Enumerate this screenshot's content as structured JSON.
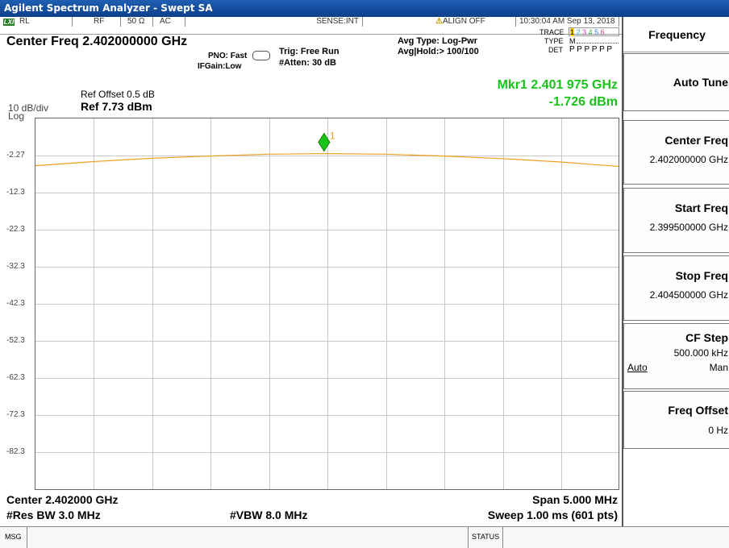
{
  "window": {
    "title": "Agilent Spectrum Analyzer - Swept SA"
  },
  "status": {
    "logo": "LXI",
    "rl": "RL",
    "rf": "RF",
    "impedance": "50 Ω",
    "coupling": "AC",
    "sense": "SENSE:INT",
    "align": "ALIGN OFF",
    "datetime": "10:30:04 AM Sep 13, 2018"
  },
  "header": {
    "center_freq": "Center Freq  2.402000000 GHz",
    "pno": "PNO: Fast",
    "ifgain": "IFGain:Low",
    "trig": "Trig: Free Run",
    "atten": "#Atten: 30 dB",
    "avg_type": "Avg Type: Log-Pwr",
    "avg_hold": "Avg|Hold:> 100/100",
    "trace_label": "TRACE",
    "trace_nums": [
      "1",
      "2",
      "3",
      "4",
      "5",
      "6"
    ],
    "type_label": "TYPE",
    "type_value": "M",
    "det_label": "DET",
    "det_value": "P P P P P P",
    "ref_offset": "Ref Offset 0.5 dB",
    "scale": "10 dB/div",
    "log": "Log",
    "ref_level": "Ref 7.73 dBm",
    "marker_freq": "Mkr1 2.401 975 GHz",
    "marker_amp": "-1.726 dBm",
    "marker_label": "1"
  },
  "graph": {
    "y_labels": [
      "-2.27",
      "-12.3",
      "-22.3",
      "-32.3",
      "-42.3",
      "-52.3",
      "-62.3",
      "-72.3",
      "-82.3"
    ],
    "trace_color": "#f0a020",
    "marker_color": "#19c419"
  },
  "chart_data": {
    "type": "line",
    "x": [
      2.3995,
      2.4,
      2.4005,
      2.401,
      2.4015,
      2.402,
      2.4025,
      2.403,
      2.4035,
      2.404,
      2.4045
    ],
    "series": [
      {
        "values": [
          -5.0,
          -3.9,
          -3.0,
          -2.4,
          -1.9,
          -1.75,
          -1.9,
          -2.4,
          -3.1,
          -4.0,
          -5.2
        ]
      }
    ],
    "ylim": [
      -92.27,
      7.73
    ],
    "xlim": [
      2.3995,
      2.4045
    ],
    "xlabel": "",
    "ylabel": "",
    "marker": {
      "x": 2.401975,
      "y": -1.726
    },
    "grid": true
  },
  "footer": {
    "center": "Center 2.402000 GHz",
    "span": "Span 5.000 MHz",
    "rbw": "#Res BW 3.0 MHz",
    "vbw": "#VBW 8.0 MHz",
    "sweep": "Sweep  1.00 ms (601 pts)"
  },
  "msgbar": {
    "msg": "MSG",
    "status": "STATUS"
  },
  "softkeys": {
    "title": "Frequency",
    "items": [
      {
        "label": "Auto Tune",
        "value": ""
      },
      {
        "label": "Center Freq",
        "value": "2.402000000 GHz"
      },
      {
        "label": "Start Freq",
        "value": "2.399500000 GHz"
      },
      {
        "label": "Stop Freq",
        "value": "2.404500000 GHz"
      },
      {
        "label": "CF Step",
        "value": "500.000 kHz",
        "opt_auto": "Auto",
        "opt_man": "Man"
      },
      {
        "label": "Freq Offset",
        "value": "0 Hz"
      }
    ]
  }
}
